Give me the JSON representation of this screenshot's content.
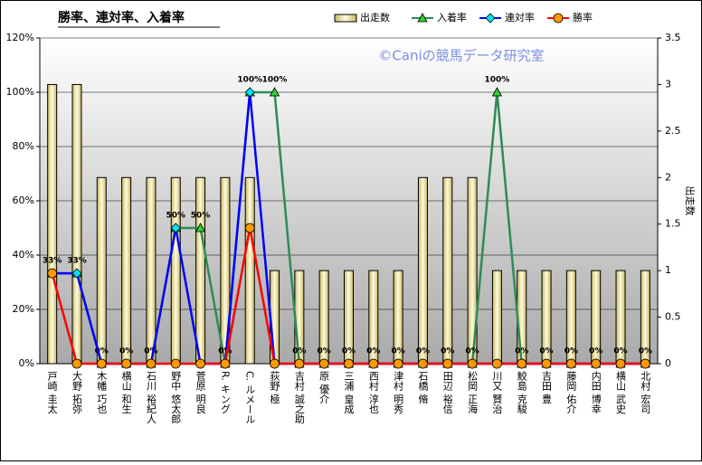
{
  "chart_data": {
    "type": "combo",
    "title": "勝率、連対率、入着率",
    "watermark": "©Caniの競馬データ研究室",
    "y2label": "出走数",
    "categories": [
      "戸崎 圭太",
      "大野 拓弥",
      "木幡 巧也",
      "横山 和生",
      "石川 裕紀人",
      "野中 悠太郎",
      "菅原 明良",
      "R. キング",
      "C. ルメール",
      "荻野 極",
      "吉村 誠之助",
      "原 優介",
      "三浦 皇成",
      "西村 淳也",
      "津村 明秀",
      "石橋 脩",
      "田辺 裕信",
      "松岡 正海",
      "川又 賢治",
      "鮫島 克駿",
      "吉田 豊",
      "藤岡 佑介",
      "内田 博幸",
      "横山 武史",
      "北村 宏司"
    ],
    "series": [
      {
        "name": "出走数",
        "type": "bar",
        "axis": "y2",
        "color": "#f0e68c",
        "values": [
          3,
          3,
          2,
          2,
          2,
          2,
          2,
          2,
          2,
          1,
          1,
          1,
          1,
          1,
          1,
          2,
          2,
          2,
          1,
          1,
          1,
          1,
          1,
          1,
          1
        ]
      },
      {
        "name": "入着率",
        "type": "line",
        "color": "#2e8b57",
        "marker": "triangle",
        "marker_color": "#32cd32",
        "values": [
          33.3,
          33.3,
          0,
          0,
          0,
          50,
          50,
          0,
          100,
          100,
          0,
          0,
          0,
          0,
          0,
          0,
          0,
          0,
          100,
          0,
          0,
          0,
          0,
          0,
          0
        ],
        "value_labels": [
          "33%",
          "33%",
          "0%",
          "0%",
          "0%",
          "50%",
          "50%",
          "0%",
          "100%",
          "100%",
          "0%",
          "0%",
          "0%",
          "0%",
          "0%",
          "0%",
          "0%",
          "0%",
          "100%",
          "0%",
          "0%",
          "0%",
          "0%",
          "0%",
          "0%"
        ]
      },
      {
        "name": "連対率",
        "type": "line",
        "color": "#0000ff",
        "marker": "diamond",
        "marker_color": "#00e5ff",
        "values": [
          33.3,
          33.3,
          0,
          0,
          0,
          50,
          0,
          0,
          100,
          0,
          0,
          0,
          0,
          0,
          0,
          0,
          0,
          0,
          0,
          0,
          0,
          0,
          0,
          0,
          0
        ]
      },
      {
        "name": "勝率",
        "type": "line",
        "color": "#ff0000",
        "marker": "circle",
        "marker_color": "#ff9900",
        "values": [
          33.3,
          0,
          0,
          0,
          0,
          0,
          0,
          0,
          50,
          0,
          0,
          0,
          0,
          0,
          0,
          0,
          0,
          0,
          0,
          0,
          0,
          0,
          0,
          0,
          0
        ]
      }
    ],
    "ylim": [
      0,
      120
    ],
    "yticks": [
      {
        "value": 0,
        "label": "0%"
      },
      {
        "value": 20,
        "label": "20%"
      },
      {
        "value": 40,
        "label": "40%"
      },
      {
        "value": 60,
        "label": "60%"
      },
      {
        "value": 80,
        "label": "80%"
      },
      {
        "value": 100,
        "label": "100%"
      },
      {
        "value": 120,
        "label": "120%"
      }
    ],
    "y2lim": [
      0,
      3.5
    ],
    "y2ticks": [
      0,
      0.5,
      1,
      1.5,
      2,
      2.5,
      3,
      3.5
    ],
    "grid": true
  }
}
